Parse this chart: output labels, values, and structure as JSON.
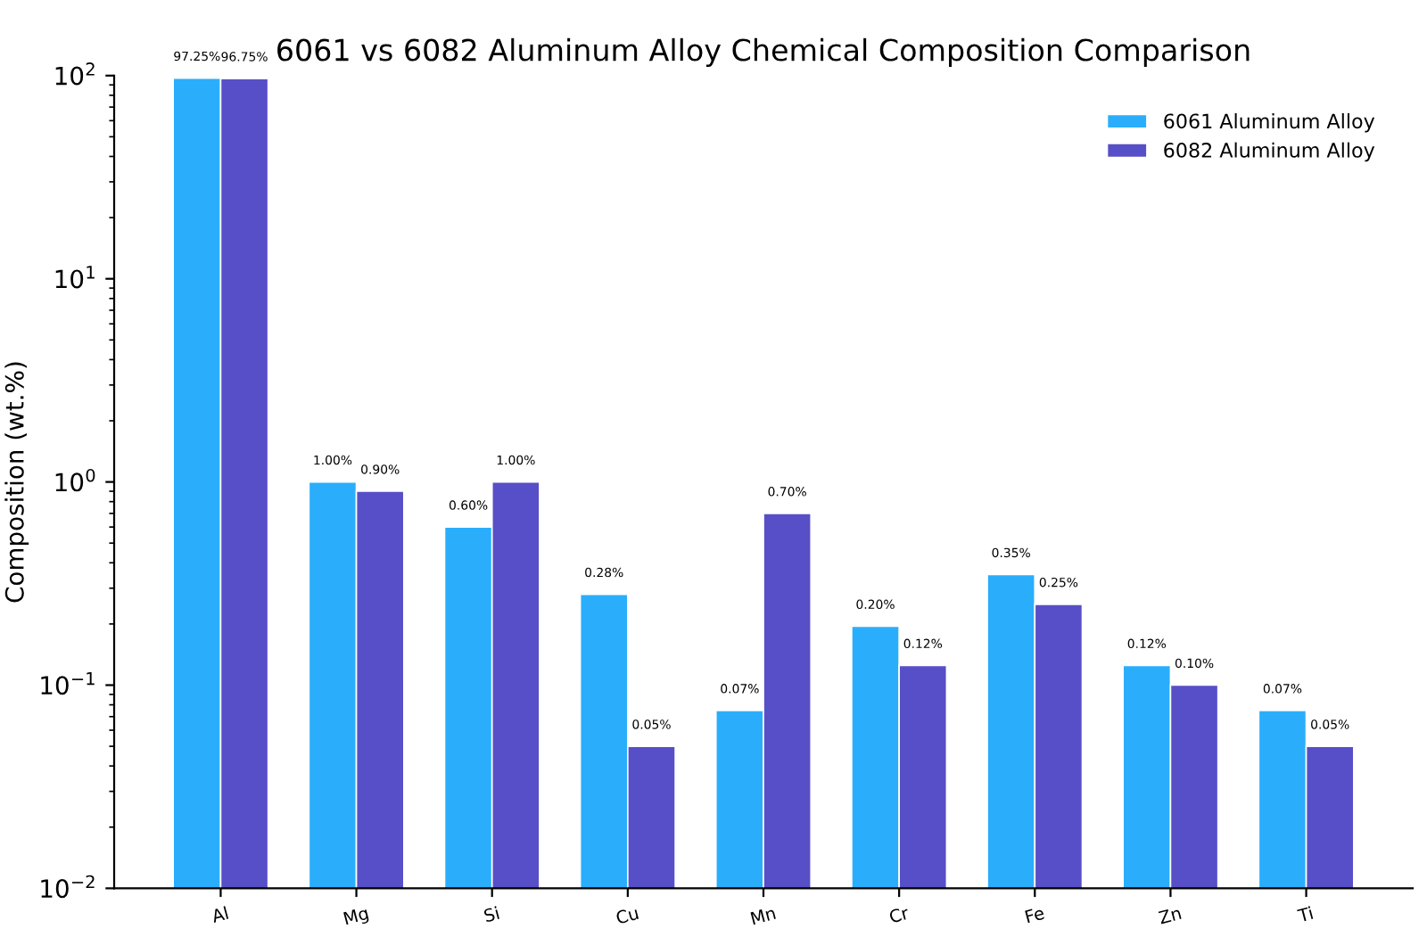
{
  "chart_data": {
    "type": "bar",
    "title": "6061 vs 6082 Aluminum Alloy Chemical Composition Comparison",
    "ylabel": "Composition (wt.%)",
    "categories": [
      "Al",
      "Mg",
      "Si",
      "Cu",
      "Mn",
      "Cr",
      "Fe",
      "Zn",
      "Ti"
    ],
    "series": [
      {
        "name": "6061 Aluminum Alloy",
        "color": "#2aaefc",
        "values": [
          97.25,
          1.0,
          0.6,
          0.28,
          0.075,
          0.195,
          0.35,
          0.125,
          0.075
        ],
        "value_labels": [
          "97.25%",
          "1.00%",
          "0.60%",
          "0.28%",
          "0.07%",
          "0.20%",
          "0.35%",
          "0.12%",
          "0.07%"
        ]
      },
      {
        "name": "6082 Aluminum Alloy",
        "color": "#574fc7",
        "values": [
          96.75,
          0.9,
          1.0,
          0.05,
          0.7,
          0.125,
          0.25,
          0.1,
          0.05
        ],
        "value_labels": [
          "96.75%",
          "0.90%",
          "1.00%",
          "0.05%",
          "0.70%",
          "0.12%",
          "0.25%",
          "0.10%",
          "0.05%"
        ]
      }
    ],
    "log": "y",
    "ylim": [
      0.01,
      100
    ],
    "yticks": [
      {
        "value": 0.01,
        "label": "10$^{−2}$"
      },
      {
        "value": 0.1,
        "label": "10$^{−1}$"
      },
      {
        "value": 1,
        "label": "10$^{0}$"
      },
      {
        "value": 10,
        "label": "10$^{1}$"
      },
      {
        "value": 100,
        "label": "10$^{2}$"
      }
    ],
    "grid": false,
    "legend": "top right"
  }
}
